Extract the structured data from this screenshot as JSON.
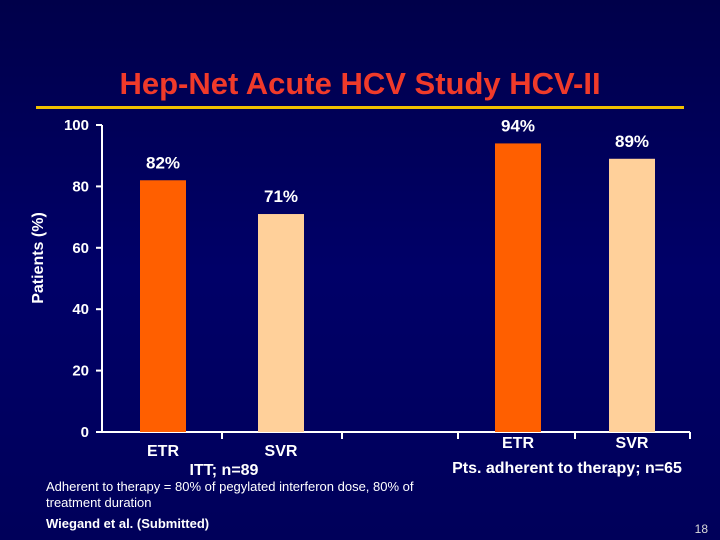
{
  "slide": {
    "title": "Hep-Net Acute HCV Study HCV-II",
    "footnote": "Adherent to therapy = 80% of pegylated interferon dose, 80% of treatment duration",
    "citation": "Wiegand et al. (Submitted)",
    "page_number": "18"
  },
  "colors": {
    "title": "#f03a2a",
    "rule": "#f0c000",
    "etr_bar": "#ff5f00",
    "svr_bar": "#ffd09a",
    "axis": "#ffffff",
    "text": "#ffffff"
  },
  "chart_data": {
    "type": "bar",
    "title": "Hep-Net Acute HCV Study HCV-II",
    "ylabel": "Patients (%)",
    "xlabel": "",
    "ylim": [
      0,
      100
    ],
    "yticks": [
      0,
      20,
      40,
      60,
      80,
      100
    ],
    "grid": false,
    "groups": [
      {
        "label": "ITT; n=89",
        "bars": [
          {
            "category": "ETR",
            "value": 82,
            "label": "82%"
          },
          {
            "category": "SVR",
            "value": 71,
            "label": "71%"
          }
        ]
      },
      {
        "label": "Pts. adherent to therapy; n=65",
        "bars": [
          {
            "category": "ETR",
            "value": 94,
            "label": "94%"
          },
          {
            "category": "SVR",
            "value": 89,
            "label": "89%"
          }
        ]
      }
    ]
  }
}
